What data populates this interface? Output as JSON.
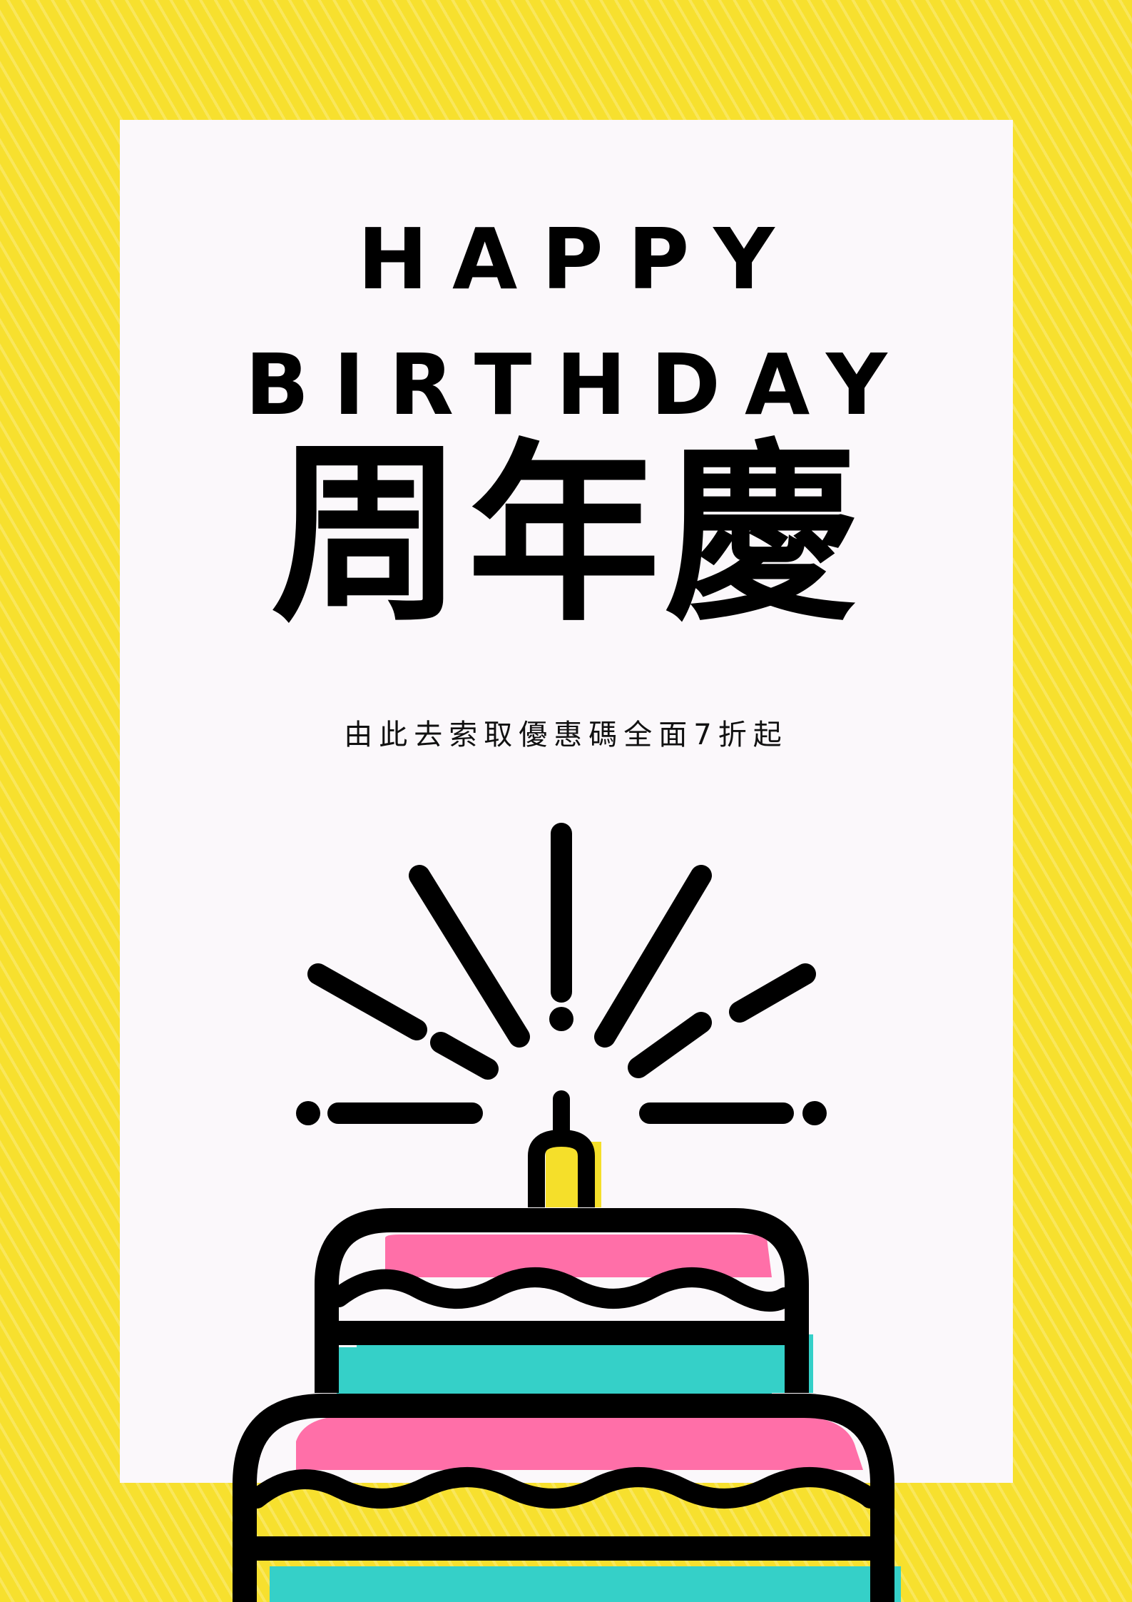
{
  "poster": {
    "title_line1": "HAPPY",
    "title_line2": "BIRTHDAY",
    "title_chinese": "周年慶",
    "subtitle": "由此去索取優惠碼全面7折起"
  },
  "colors": {
    "background_yellow": "#f7e02e",
    "card_white": "#fbf8fb",
    "ink_black": "#000000",
    "cake_pink": "#ff6fa8",
    "cake_teal": "#35d0c8",
    "candle_yellow": "#f5df2a"
  },
  "illustration": {
    "icon": "birthday-cake-icon",
    "tiers": 2,
    "candles": 1
  }
}
